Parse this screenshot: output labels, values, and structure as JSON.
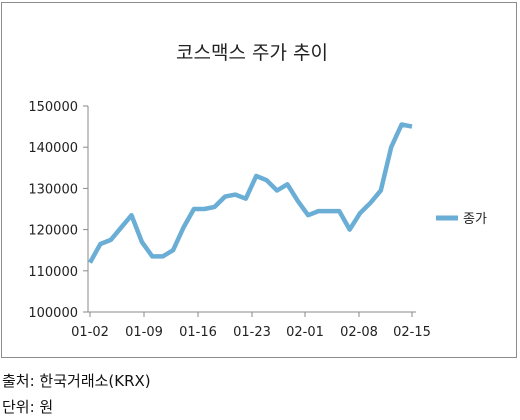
{
  "chart_data": {
    "type": "line",
    "title": "코스맥스 주가 추이",
    "ylim": [
      100000,
      150000
    ],
    "y_ticks": [
      100000,
      110000,
      120000,
      130000,
      140000,
      150000
    ],
    "y_tick_labels": [
      "100000",
      "110000",
      "120000",
      "130000",
      "140000",
      "150000"
    ],
    "x_tick_labels": [
      "01-02",
      "01-09",
      "01-16",
      "01-23",
      "02-01",
      "02-08",
      "02-15"
    ],
    "grid": false,
    "legend_position": "right",
    "series": [
      {
        "name": "종가",
        "color": "#6aaed6",
        "values": [
          112000,
          116500,
          117500,
          120500,
          123500,
          117000,
          113500,
          113500,
          115000,
          120500,
          125000,
          125000,
          125500,
          128000,
          128500,
          127500,
          133000,
          132000,
          129500,
          131000,
          127000,
          123500,
          124500,
          124500,
          124500,
          120000,
          124000,
          126500,
          129500,
          140000,
          145500,
          145000
        ]
      }
    ]
  },
  "footer": {
    "source": "출처: 한국거래소(KRX)",
    "unit": "단위: 원"
  }
}
